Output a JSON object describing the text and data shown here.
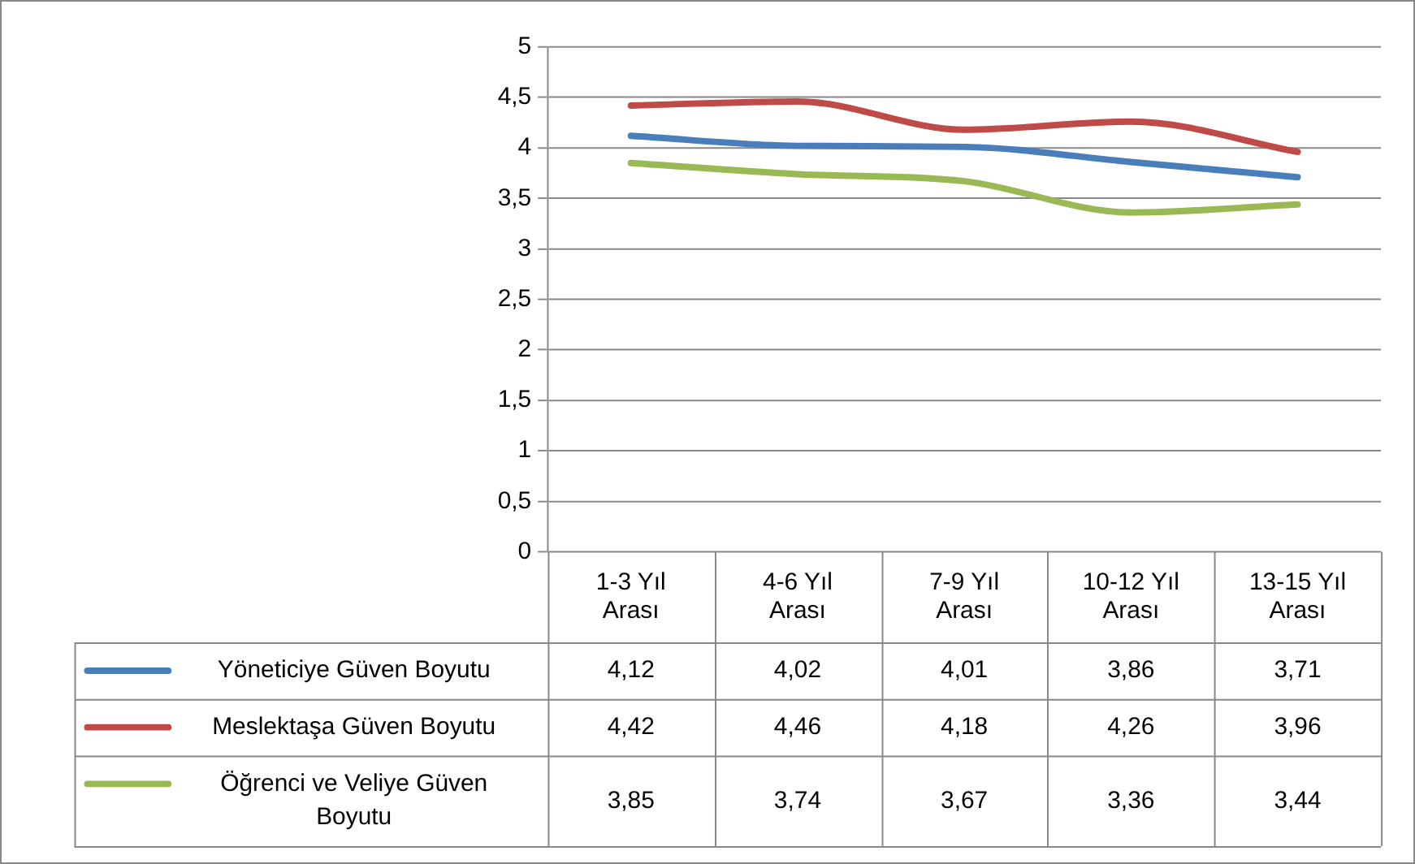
{
  "chart_data": {
    "type": "line",
    "categories": [
      "1-3 Yıl Arası",
      "4-6 Yıl Arası",
      "7-9 Yıl Arası",
      "10-12 Yıl Arası",
      "13-15 Yıl Arası"
    ],
    "series": [
      {
        "name": "Yöneticiye Güven Boyutu",
        "color": "#4a7ebb",
        "values": [
          4.12,
          4.02,
          4.01,
          3.86,
          3.71
        ],
        "value_labels": [
          "4,12",
          "4,02",
          "4,01",
          "3,86",
          "3,71"
        ]
      },
      {
        "name": "Meslektaşa Güven Boyutu",
        "color": "#be4b48",
        "values": [
          4.42,
          4.46,
          4.18,
          4.26,
          3.96
        ],
        "value_labels": [
          "4,42",
          "4,46",
          "4,18",
          "4,26",
          "3,96"
        ]
      },
      {
        "name": "Öğrenci ve Veliye Güven Boyutu",
        "color": "#98b954",
        "values": [
          3.85,
          3.74,
          3.67,
          3.36,
          3.44
        ],
        "value_labels": [
          "3,85",
          "3,74",
          "3,67",
          "3,36",
          "3,44"
        ]
      }
    ],
    "ylim": [
      0,
      5
    ],
    "yticks": [
      0,
      {
        "value": 0.5,
        "label": "0,5"
      },
      1,
      {
        "value": 1.5,
        "label": "1,5"
      },
      2,
      {
        "value": 2.5,
        "label": "2,5"
      },
      3,
      {
        "value": 3.5,
        "label": "3,5"
      },
      4,
      {
        "value": 4.5,
        "label": "4,5"
      },
      5
    ],
    "grid": "y",
    "legend": "bottom",
    "marker": "none",
    "line_style": "solid"
  }
}
